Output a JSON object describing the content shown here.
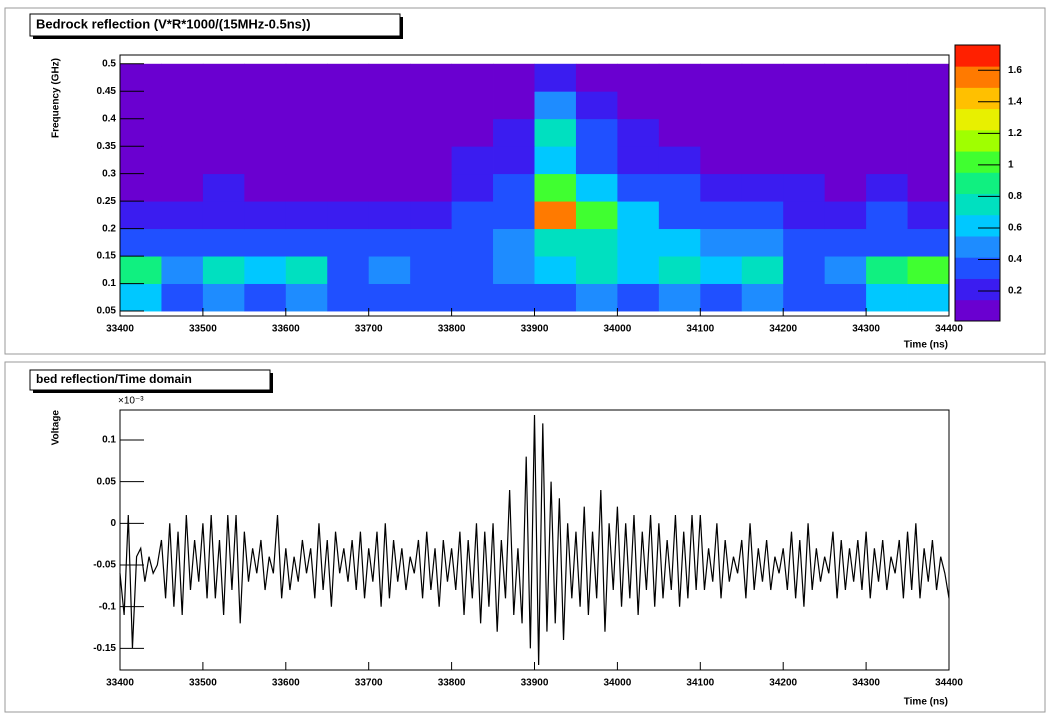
{
  "chart_data": [
    {
      "type": "heatmap",
      "title": "Bedrock reflection (V*R*1000/(15MHz-0.5ns))",
      "xlabel": "Time (ns)",
      "ylabel": "Frequency (GHz)",
      "xlim": [
        33400,
        34400
      ],
      "xticks": [
        33400,
        33500,
        33600,
        33700,
        33800,
        33900,
        34000,
        34100,
        34200,
        34300,
        34400
      ],
      "ylim": [
        0.041,
        0.516
      ],
      "yticks": [
        0.05,
        0.1,
        0.15,
        0.2,
        0.25,
        0.3,
        0.35,
        0.4,
        0.45,
        0.5
      ],
      "zlim": [
        0.01,
        1.76
      ],
      "zticks": [
        0.2,
        0.4,
        0.6,
        0.8,
        1,
        1.2,
        1.4,
        1.6
      ],
      "colorscale": [
        "#6a00d0",
        "#3b1cf0",
        "#2050ff",
        "#1e8cff",
        "#00c8ff",
        "#00e0c0",
        "#10f080",
        "#40ff30",
        "#a0ff00",
        "#e8f000",
        "#ffc000",
        "#ff7a00",
        "#ff2000"
      ],
      "xbins": [
        33400,
        33450,
        33500,
        33550,
        33600,
        33650,
        33700,
        33750,
        33800,
        33850,
        33900,
        33950,
        34000,
        34050,
        34100,
        34150,
        34200,
        34250,
        34300,
        34350,
        34400
      ],
      "ybins": [
        0.05,
        0.1,
        0.15,
        0.2,
        0.25,
        0.3,
        0.35,
        0.4,
        0.45,
        0.5
      ],
      "z": [
        [
          0.6,
          0.4,
          0.5,
          0.4,
          0.5,
          0.3,
          0.3,
          0.3,
          0.4,
          0.4,
          0.4,
          0.5,
          0.4,
          0.5,
          0.4,
          0.5,
          0.3,
          0.4,
          0.6,
          0.6
        ],
        [
          0.9,
          0.5,
          0.8,
          0.6,
          0.7,
          0.4,
          0.5,
          0.4,
          0.4,
          0.5,
          0.6,
          0.7,
          0.6,
          0.7,
          0.6,
          0.8,
          0.4,
          0.5,
          0.9,
          1.0
        ],
        [
          0.4,
          0.3,
          0.4,
          0.3,
          0.3,
          0.3,
          0.3,
          0.3,
          0.4,
          0.5,
          0.7,
          0.8,
          0.6,
          0.6,
          0.5,
          0.5,
          0.3,
          0.3,
          0.4,
          0.4
        ],
        [
          0.2,
          0.2,
          0.2,
          0.2,
          0.2,
          0.2,
          0.2,
          0.2,
          0.3,
          0.4,
          1.5,
          1.0,
          0.6,
          0.4,
          0.3,
          0.3,
          0.2,
          0.2,
          0.3,
          0.2
        ],
        [
          0.1,
          0.1,
          0.2,
          0.1,
          0.1,
          0.1,
          0.1,
          0.1,
          0.2,
          0.3,
          1.0,
          0.6,
          0.3,
          0.3,
          0.2,
          0.2,
          0.2,
          0.1,
          0.2,
          0.1
        ],
        [
          0.1,
          0.1,
          0.1,
          0.1,
          0.1,
          0.1,
          0.1,
          0.1,
          0.2,
          0.2,
          0.6,
          0.4,
          0.2,
          0.2,
          0.1,
          0.1,
          0.1,
          0.1,
          0.1,
          0.1
        ],
        [
          0.1,
          0.1,
          0.1,
          0.1,
          0.1,
          0.1,
          0.1,
          0.1,
          0.1,
          0.2,
          0.8,
          0.3,
          0.2,
          0.1,
          0.1,
          0.1,
          0.1,
          0.1,
          0.1,
          0.1
        ],
        [
          0.1,
          0.1,
          0.1,
          0.1,
          0.1,
          0.1,
          0.1,
          0.1,
          0.1,
          0.1,
          0.5,
          0.2,
          0.1,
          0.1,
          0.1,
          0.1,
          0.1,
          0.1,
          0.1,
          0.1
        ],
        [
          0.1,
          0.1,
          0.1,
          0.1,
          0.1,
          0.1,
          0.1,
          0.1,
          0.1,
          0.1,
          0.2,
          0.1,
          0.1,
          0.1,
          0.1,
          0.1,
          0.1,
          0.1,
          0.1,
          0.1
        ]
      ]
    },
    {
      "type": "line",
      "title": "bed reflection/Time domain",
      "xlabel": "Time (ns)",
      "ylabel": "Voltage",
      "y_multiplier": "×10⁻³",
      "xlim": [
        33400,
        34400
      ],
      "xticks": [
        33400,
        33500,
        33600,
        33700,
        33800,
        33900,
        34000,
        34100,
        34200,
        34300,
        34400
      ],
      "ylim": [
        -0.176,
        0.136
      ],
      "yticks": [
        -0.15,
        -0.1,
        -0.05,
        0,
        0.05,
        0.1
      ],
      "color": "#000000",
      "x": [
        33400,
        33405,
        33410,
        33415,
        33420,
        33425,
        33430,
        33435,
        33440,
        33445,
        33450,
        33455,
        33460,
        33465,
        33470,
        33475,
        33480,
        33485,
        33490,
        33495,
        33500,
        33505,
        33510,
        33515,
        33520,
        33525,
        33530,
        33535,
        33540,
        33545,
        33550,
        33555,
        33560,
        33565,
        33570,
        33575,
        33580,
        33585,
        33590,
        33595,
        33600,
        33605,
        33610,
        33615,
        33620,
        33625,
        33630,
        33635,
        33640,
        33645,
        33650,
        33655,
        33660,
        33665,
        33670,
        33675,
        33680,
        33685,
        33690,
        33695,
        33700,
        33705,
        33710,
        33715,
        33720,
        33725,
        33730,
        33735,
        33740,
        33745,
        33750,
        33755,
        33760,
        33765,
        33770,
        33775,
        33780,
        33785,
        33790,
        33795,
        33800,
        33805,
        33810,
        33815,
        33820,
        33825,
        33830,
        33835,
        33840,
        33845,
        33850,
        33855,
        33860,
        33865,
        33870,
        33875,
        33880,
        33885,
        33890,
        33895,
        33900,
        33905,
        33910,
        33915,
        33920,
        33925,
        33930,
        33935,
        33940,
        33945,
        33950,
        33955,
        33960,
        33965,
        33970,
        33975,
        33980,
        33985,
        33990,
        33995,
        34000,
        34005,
        34010,
        34015,
        34020,
        34025,
        34030,
        34035,
        34040,
        34045,
        34050,
        34055,
        34060,
        34065,
        34070,
        34075,
        34080,
        34085,
        34090,
        34095,
        34100,
        34105,
        34110,
        34115,
        34120,
        34125,
        34130,
        34135,
        34140,
        34145,
        34150,
        34155,
        34160,
        34165,
        34170,
        34175,
        34180,
        34185,
        34190,
        34195,
        34200,
        34205,
        34210,
        34215,
        34220,
        34225,
        34230,
        34235,
        34240,
        34245,
        34250,
        34255,
        34260,
        34265,
        34270,
        34275,
        34280,
        34285,
        34290,
        34295,
        34300,
        34305,
        34310,
        34315,
        34320,
        34325,
        34330,
        34335,
        34340,
        34345,
        34350,
        34355,
        34360,
        34365,
        34370,
        34375,
        34380,
        34385,
        34390,
        34395,
        34400
      ],
      "values": [
        -0.06,
        -0.11,
        0.01,
        -0.15,
        -0.04,
        -0.03,
        -0.07,
        -0.04,
        -0.06,
        -0.05,
        -0.02,
        -0.09,
        0.0,
        -0.1,
        -0.01,
        -0.11,
        0.01,
        -0.08,
        -0.02,
        -0.07,
        0.0,
        -0.09,
        0.01,
        -0.09,
        -0.02,
        -0.11,
        0.01,
        -0.08,
        0.01,
        -0.12,
        -0.01,
        -0.07,
        -0.03,
        -0.06,
        -0.02,
        -0.08,
        -0.04,
        -0.06,
        0.01,
        -0.09,
        -0.03,
        -0.08,
        -0.04,
        -0.07,
        -0.02,
        -0.06,
        -0.03,
        -0.09,
        0.0,
        -0.08,
        -0.02,
        -0.1,
        -0.01,
        -0.06,
        -0.03,
        -0.07,
        -0.02,
        -0.08,
        -0.01,
        -0.09,
        -0.03,
        -0.07,
        -0.01,
        -0.1,
        0.0,
        -0.09,
        -0.02,
        -0.07,
        -0.03,
        -0.08,
        -0.04,
        -0.06,
        -0.02,
        -0.09,
        -0.01,
        -0.08,
        -0.03,
        -0.1,
        -0.02,
        -0.07,
        -0.03,
        -0.08,
        -0.01,
        -0.11,
        -0.02,
        -0.09,
        0.0,
        -0.12,
        -0.01,
        -0.1,
        0.0,
        -0.13,
        -0.02,
        -0.09,
        0.04,
        -0.11,
        -0.03,
        -0.12,
        0.08,
        -0.15,
        0.13,
        -0.17,
        0.12,
        -0.13,
        0.05,
        -0.12,
        0.03,
        -0.14,
        0.0,
        -0.09,
        -0.01,
        -0.1,
        0.02,
        -0.11,
        -0.01,
        -0.09,
        0.04,
        -0.13,
        0.0,
        -0.08,
        0.02,
        -0.1,
        0.0,
        -0.09,
        0.01,
        -0.11,
        -0.01,
        -0.08,
        0.01,
        -0.1,
        0.0,
        -0.09,
        -0.02,
        -0.08,
        0.01,
        -0.1,
        -0.01,
        -0.09,
        0.01,
        -0.08,
        0.01,
        -0.08,
        -0.03,
        -0.07,
        0.0,
        -0.09,
        -0.02,
        -0.07,
        -0.04,
        -0.06,
        -0.02,
        -0.09,
        0.0,
        -0.08,
        -0.03,
        -0.07,
        -0.02,
        -0.08,
        -0.04,
        -0.06,
        -0.03,
        -0.08,
        -0.01,
        -0.09,
        -0.02,
        -0.1,
        0.0,
        -0.08,
        -0.03,
        -0.07,
        -0.04,
        -0.06,
        -0.01,
        -0.09,
        -0.02,
        -0.08,
        -0.03,
        -0.07,
        -0.02,
        -0.08,
        -0.01,
        -0.09,
        -0.03,
        -0.07,
        -0.02,
        -0.08,
        -0.04,
        -0.06,
        -0.02,
        -0.09,
        -0.01,
        -0.08,
        0.0,
        -0.09,
        -0.03,
        -0.07,
        -0.02,
        -0.08,
        -0.04,
        -0.06,
        -0.09
      ]
    }
  ]
}
